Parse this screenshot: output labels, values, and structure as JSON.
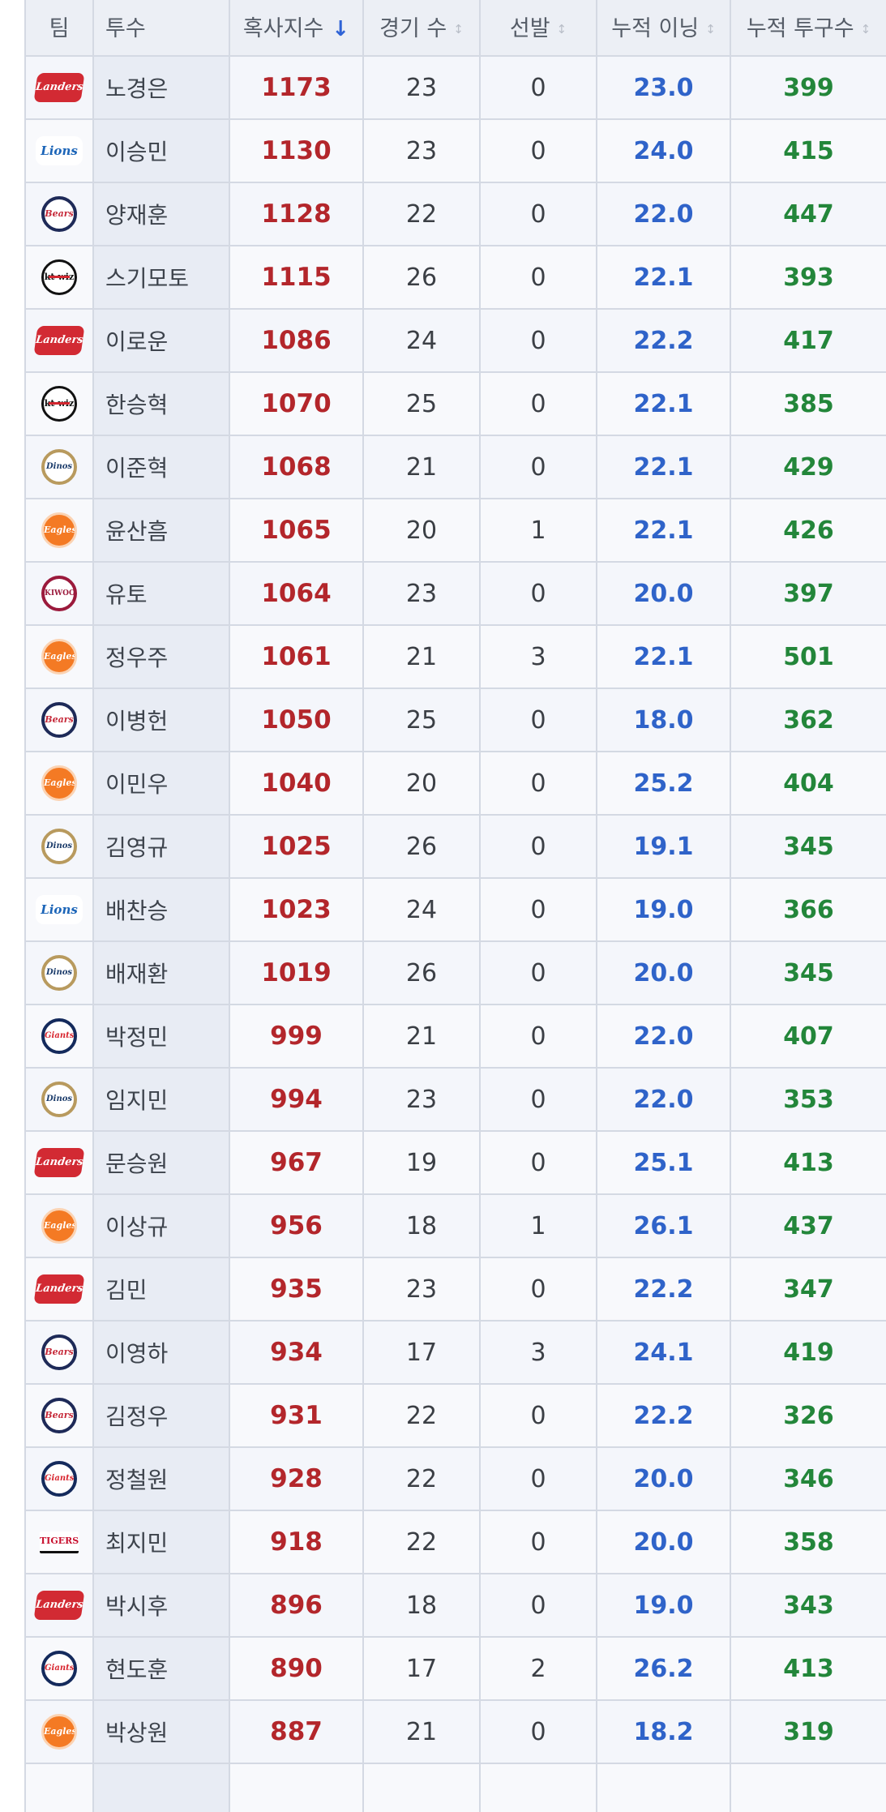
{
  "headers": {
    "team": "팀",
    "pitcher": "투수",
    "strikeouts": "혹사지수",
    "games": "경기 수",
    "starts": "선발",
    "innings": "누적 이닝",
    "pitches": "누적 투구수"
  },
  "sort": {
    "active_arrow": "↓",
    "inactive_arrow": "↕"
  },
  "rows": [
    {
      "team": "landers",
      "team_label": "Landers",
      "name": "노경은",
      "k": "1173",
      "g": "23",
      "gs": "0",
      "ip": "23.0",
      "np": "399"
    },
    {
      "team": "lions",
      "team_label": "Lions",
      "name": "이승민",
      "k": "1130",
      "g": "23",
      "gs": "0",
      "ip": "24.0",
      "np": "415"
    },
    {
      "team": "bears",
      "team_label": "Bears",
      "name": "양재훈",
      "k": "1128",
      "g": "22",
      "gs": "0",
      "ip": "22.0",
      "np": "447"
    },
    {
      "team": "kt",
      "team_label": "kt wiz",
      "name": "스기모토",
      "k": "1115",
      "g": "26",
      "gs": "0",
      "ip": "22.1",
      "np": "393"
    },
    {
      "team": "landers",
      "team_label": "Landers",
      "name": "이로운",
      "k": "1086",
      "g": "24",
      "gs": "0",
      "ip": "22.2",
      "np": "417"
    },
    {
      "team": "kt",
      "team_label": "kt wiz",
      "name": "한승혁",
      "k": "1070",
      "g": "25",
      "gs": "0",
      "ip": "22.1",
      "np": "385"
    },
    {
      "team": "dinos",
      "team_label": "Dinos",
      "name": "이준혁",
      "k": "1068",
      "g": "21",
      "gs": "0",
      "ip": "22.1",
      "np": "429"
    },
    {
      "team": "eagles",
      "team_label": "Eagles",
      "name": "윤산흠",
      "k": "1065",
      "g": "20",
      "gs": "1",
      "ip": "22.1",
      "np": "426"
    },
    {
      "team": "heroes",
      "team_label": "KIWOOM",
      "name": "유토",
      "k": "1064",
      "g": "23",
      "gs": "0",
      "ip": "20.0",
      "np": "397"
    },
    {
      "team": "eagles",
      "team_label": "Eagles",
      "name": "정우주",
      "k": "1061",
      "g": "21",
      "gs": "3",
      "ip": "22.1",
      "np": "501"
    },
    {
      "team": "bears",
      "team_label": "Bears",
      "name": "이병헌",
      "k": "1050",
      "g": "25",
      "gs": "0",
      "ip": "18.0",
      "np": "362"
    },
    {
      "team": "eagles",
      "team_label": "Eagles",
      "name": "이민우",
      "k": "1040",
      "g": "20",
      "gs": "0",
      "ip": "25.2",
      "np": "404"
    },
    {
      "team": "dinos",
      "team_label": "Dinos",
      "name": "김영규",
      "k": "1025",
      "g": "26",
      "gs": "0",
      "ip": "19.1",
      "np": "345"
    },
    {
      "team": "lions",
      "team_label": "Lions",
      "name": "배찬승",
      "k": "1023",
      "g": "24",
      "gs": "0",
      "ip": "19.0",
      "np": "366"
    },
    {
      "team": "dinos",
      "team_label": "Dinos",
      "name": "배재환",
      "k": "1019",
      "g": "26",
      "gs": "0",
      "ip": "20.0",
      "np": "345"
    },
    {
      "team": "giants",
      "team_label": "Giants",
      "name": "박정민",
      "k": "999",
      "g": "21",
      "gs": "0",
      "ip": "22.0",
      "np": "407"
    },
    {
      "team": "dinos",
      "team_label": "Dinos",
      "name": "임지민",
      "k": "994",
      "g": "23",
      "gs": "0",
      "ip": "22.0",
      "np": "353"
    },
    {
      "team": "landers",
      "team_label": "Landers",
      "name": "문승원",
      "k": "967",
      "g": "19",
      "gs": "0",
      "ip": "25.1",
      "np": "413"
    },
    {
      "team": "eagles",
      "team_label": "Eagles",
      "name": "이상규",
      "k": "956",
      "g": "18",
      "gs": "1",
      "ip": "26.1",
      "np": "437"
    },
    {
      "team": "landers",
      "team_label": "Landers",
      "name": "김민",
      "k": "935",
      "g": "23",
      "gs": "0",
      "ip": "22.2",
      "np": "347"
    },
    {
      "team": "bears",
      "team_label": "Bears",
      "name": "이영하",
      "k": "934",
      "g": "17",
      "gs": "3",
      "ip": "24.1",
      "np": "419"
    },
    {
      "team": "bears",
      "team_label": "Bears",
      "name": "김정우",
      "k": "931",
      "g": "22",
      "gs": "0",
      "ip": "22.2",
      "np": "326"
    },
    {
      "team": "giants",
      "team_label": "Giants",
      "name": "정철원",
      "k": "928",
      "g": "22",
      "gs": "0",
      "ip": "20.0",
      "np": "346"
    },
    {
      "team": "tigers",
      "team_label": "TIGERS",
      "name": "최지민",
      "k": "918",
      "g": "22",
      "gs": "0",
      "ip": "20.0",
      "np": "358"
    },
    {
      "team": "landers",
      "team_label": "Landers",
      "name": "박시후",
      "k": "896",
      "g": "18",
      "gs": "0",
      "ip": "19.0",
      "np": "343"
    },
    {
      "team": "giants",
      "team_label": "Giants",
      "name": "현도훈",
      "k": "890",
      "g": "17",
      "gs": "2",
      "ip": "26.2",
      "np": "413"
    },
    {
      "team": "eagles",
      "team_label": "Eagles",
      "name": "박상원",
      "k": "887",
      "g": "21",
      "gs": "0",
      "ip": "18.2",
      "np": "319"
    },
    {
      "team": "",
      "team_label": "",
      "name": "",
      "k": "",
      "g": "",
      "gs": "",
      "ip": "",
      "np": ""
    }
  ]
}
